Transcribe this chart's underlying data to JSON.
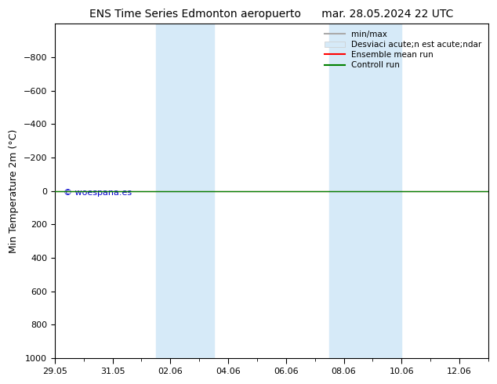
{
  "title_left": "ENS Time Series Edmonton aeropuerto",
  "title_right": "mar. 28.05.2024 22 UTC",
  "ylabel": "Min Temperature 2m (°C)",
  "ylim": [
    -1000,
    1000
  ],
  "yticks": [
    -800,
    -600,
    -400,
    -200,
    0,
    200,
    400,
    600,
    800,
    1000
  ],
  "xlim_start": 0,
  "xlim_end": 15,
  "xtick_labels": [
    "29.05",
    "31.05",
    "02.06",
    "04.06",
    "06.06",
    "08.06",
    "10.06",
    "12.06"
  ],
  "xtick_positions": [
    0,
    2,
    4,
    6,
    8,
    10,
    12,
    14
  ],
  "shade_regions": [
    {
      "start": 3.5,
      "end": 5.5
    },
    {
      "start": 9.5,
      "end": 12.0
    }
  ],
  "shade_color": "#d6eaf8",
  "line_green": "#008000",
  "line_red": "#ff0000",
  "line_gray": "#aaaaaa",
  "watermark": "© woespana.es",
  "watermark_color": "#0000cc",
  "background_color": "#ffffff",
  "title_fontsize": 10,
  "axis_fontsize": 9,
  "tick_fontsize": 8,
  "legend_label_minmax": "min/max",
  "legend_label_std": "Desviaci acute;n est acute;ndar",
  "legend_label_ensemble": "Ensemble mean run",
  "legend_label_control": "Controll run"
}
